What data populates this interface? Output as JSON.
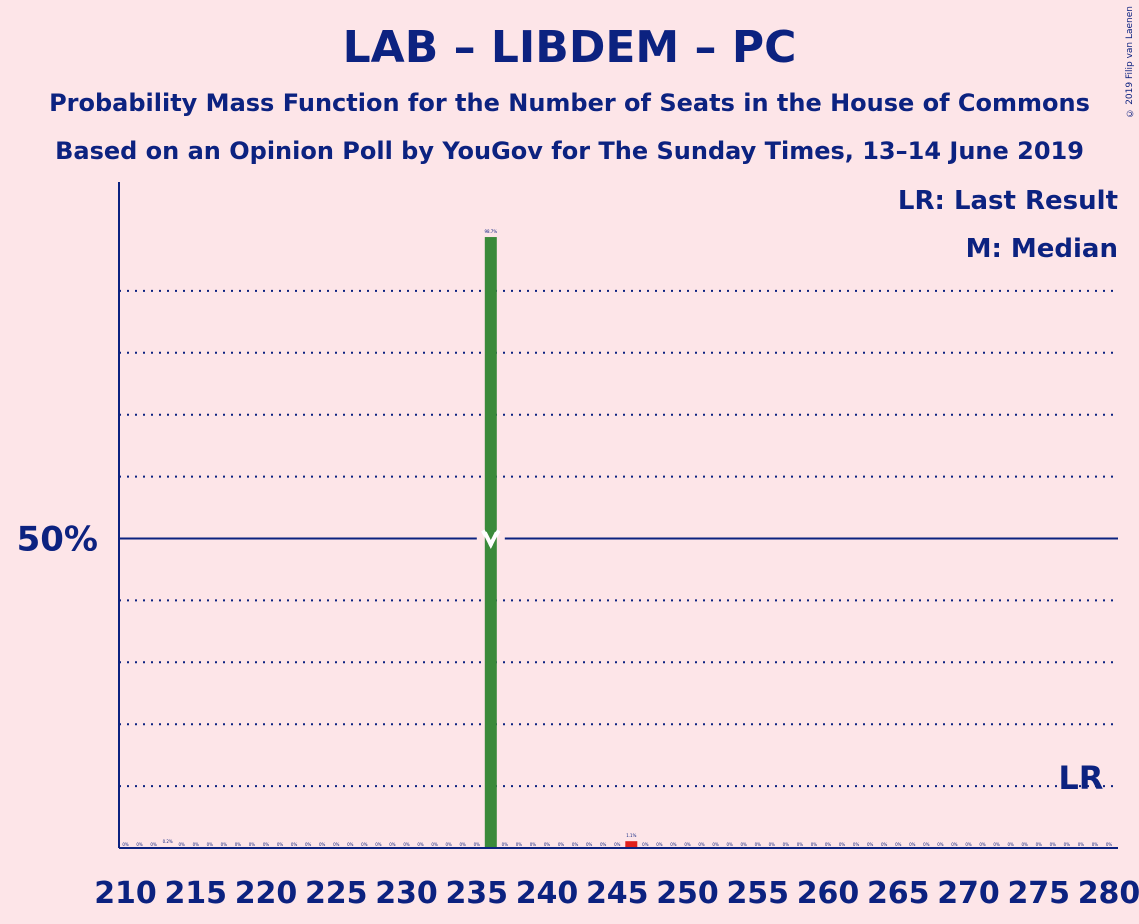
{
  "header": {
    "title": "LAB – LIBDEM – PC",
    "subtitle_line1": "Probability Mass Function for the Number of Seats in the House of Commons",
    "subtitle_line2": "Based on an Opinion Poll by YouGov for The Sunday Times, 13–14 June 2019",
    "copyright": "© 2019 Filip van Laenen"
  },
  "legend": {
    "last_result": "LR: Last Result",
    "median": "M: Median"
  },
  "colors": {
    "background": "#FDE5E8",
    "axis": "#0C2280",
    "bar": "#3A8A3A",
    "last_result_bar": "#E0201C",
    "median_marker": "#FFFFFF"
  },
  "chart_data": {
    "type": "bar",
    "x_range": [
      210,
      280
    ],
    "x_ticks": [
      210,
      215,
      220,
      225,
      230,
      235,
      240,
      245,
      250,
      255,
      260,
      265,
      270,
      275,
      280
    ],
    "ylim": [
      0,
      100
    ],
    "y_gridlines": [
      10,
      20,
      30,
      40,
      60,
      70,
      80,
      90
    ],
    "y_label_value": 50,
    "y_label": "50%",
    "grid": "dotted",
    "legend_position": "top-right",
    "median_seat": 236,
    "last_result_seat": 278,
    "last_result_label": "LR",
    "bars": [
      {
        "seat": 213,
        "value": 0.2,
        "label": "0.2%"
      },
      {
        "seat": 236,
        "value": 98.7,
        "label": "98.7%"
      },
      {
        "seat": 246,
        "value": 1.1,
        "label": "1.1%"
      }
    ],
    "zero_label": "0%"
  }
}
